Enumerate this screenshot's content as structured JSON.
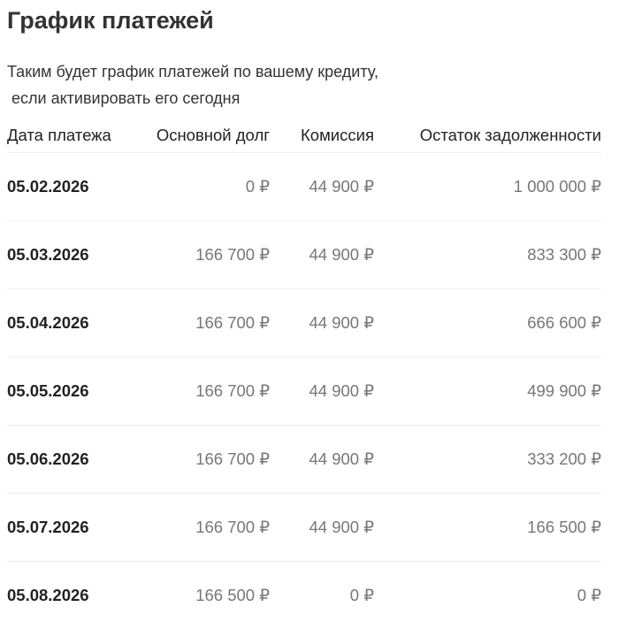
{
  "title": "График платежей",
  "subtitle": {
    "line1": "Таким будет график платежей по вашему кредиту,",
    "line2": " если активировать его сегодня"
  },
  "table": {
    "headers": [
      "Дата платежа",
      "Основной долг",
      "Комиссия",
      "Остаток задолженности"
    ],
    "rows": [
      [
        "05.02.2026",
        "0 ₽",
        "44 900 ₽",
        "1 000 000 ₽"
      ],
      [
        "05.03.2026",
        "166 700 ₽",
        "44 900 ₽",
        "833 300 ₽"
      ],
      [
        "05.04.2026",
        "166 700 ₽",
        "44 900 ₽",
        "666 600 ₽"
      ],
      [
        "05.05.2026",
        "166 700 ₽",
        "44 900 ₽",
        "499 900 ₽"
      ],
      [
        "05.06.2026",
        "166 700 ₽",
        "44 900 ₽",
        "333 200 ₽"
      ],
      [
        "05.07.2026",
        "166 700 ₽",
        "44 900 ₽",
        "166 500 ₽"
      ],
      [
        "05.08.2026",
        "166 500 ₽",
        "0 ₽",
        "0 ₽"
      ]
    ]
  }
}
